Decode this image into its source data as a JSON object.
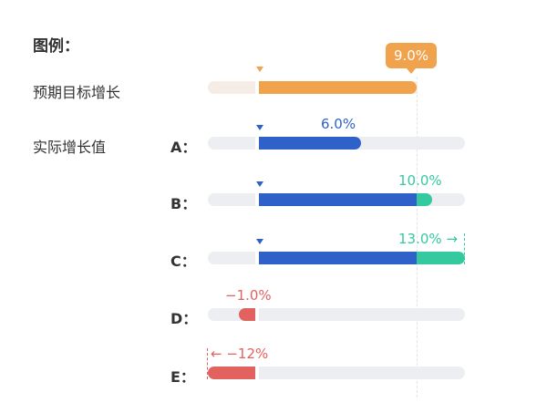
{
  "legend": {
    "title": "图例：",
    "target_label": "预期目标增长",
    "actual_label": "实际增长值"
  },
  "target": {
    "value": 9.0,
    "value_label": "9.0%"
  },
  "rows": [
    {
      "name": "A：",
      "value": 6.0,
      "value_label": "6.0%"
    },
    {
      "name": "B：",
      "value": 10.0,
      "value_label": "10.0%"
    },
    {
      "name": "C：",
      "value": 13.0,
      "value_label": "13.0% →"
    },
    {
      "name": "D：",
      "value": -1.0,
      "value_label": "−1.0%"
    },
    {
      "name": "E：",
      "value": -12.0,
      "value_label": "← −12%"
    }
  ],
  "colors": {
    "target": "#f0a24c",
    "target_track": "#f5ece5",
    "track": "#eceef2",
    "positive": "#2f62c9",
    "exceed": "#35c9a0",
    "negative": "#e2625f"
  }
}
